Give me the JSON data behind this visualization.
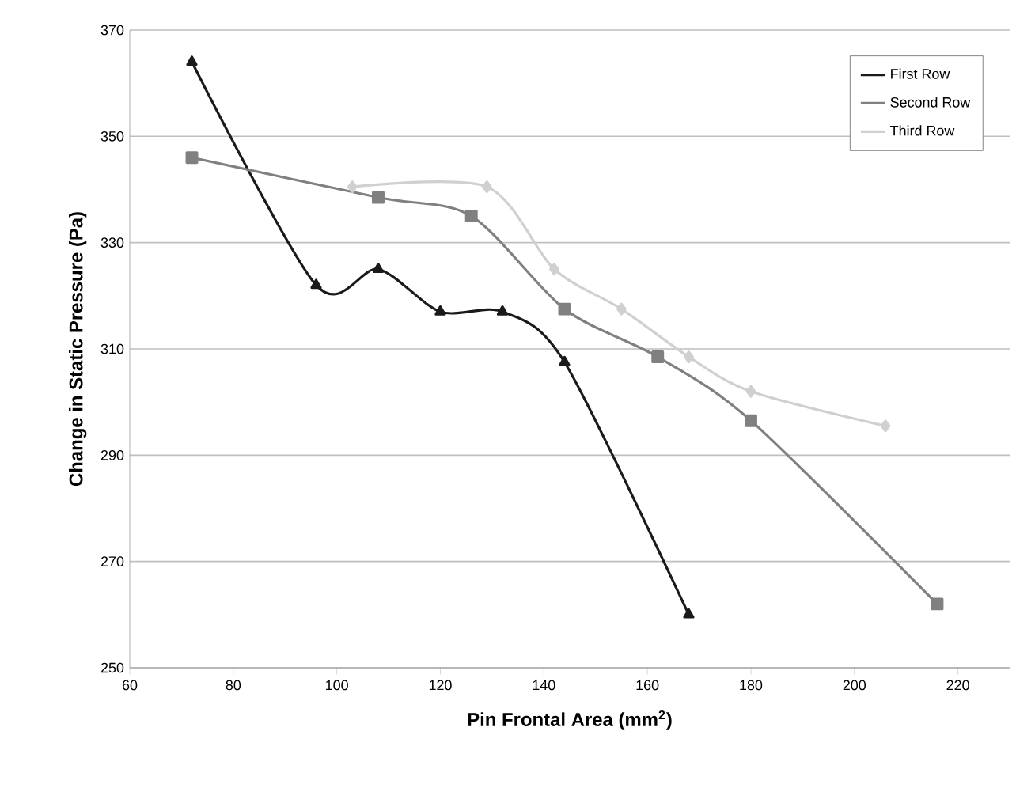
{
  "chart_data": {
    "type": "line",
    "xlabel": "Pin Frontal Area (mm$^{2}$)",
    "ylabel": "Change in Static Pressure (Pa)",
    "xlim": [
      60,
      230
    ],
    "xticks": [
      60,
      80,
      100,
      120,
      140,
      160,
      180,
      200,
      220
    ],
    "ylim": [
      250,
      370
    ],
    "yticks": [
      250,
      270,
      290,
      310,
      330,
      350,
      370
    ],
    "grid": "y",
    "legend": "top right",
    "series": [
      {
        "name": "First Row",
        "color": "#1a1a1a",
        "marker": "triangle",
        "x": [
          72,
          96,
          108,
          120,
          132,
          144,
          168
        ],
        "values": [
          364,
          322,
          325,
          317,
          317,
          307.5,
          260
        ]
      },
      {
        "name": "Second Row",
        "color": "#808080",
        "marker": "square",
        "x": [
          72,
          108,
          126,
          144,
          162,
          180,
          216
        ],
        "values": [
          346,
          338.5,
          335,
          317.5,
          308.5,
          296.5,
          262
        ]
      },
      {
        "name": "Third Row",
        "color": "#d0d0d0",
        "marker": "diamond",
        "x": [
          103,
          129,
          142,
          155,
          168,
          180,
          206
        ],
        "values": [
          340.5,
          340.5,
          325,
          317.5,
          308.5,
          302,
          295.5
        ]
      }
    ]
  }
}
